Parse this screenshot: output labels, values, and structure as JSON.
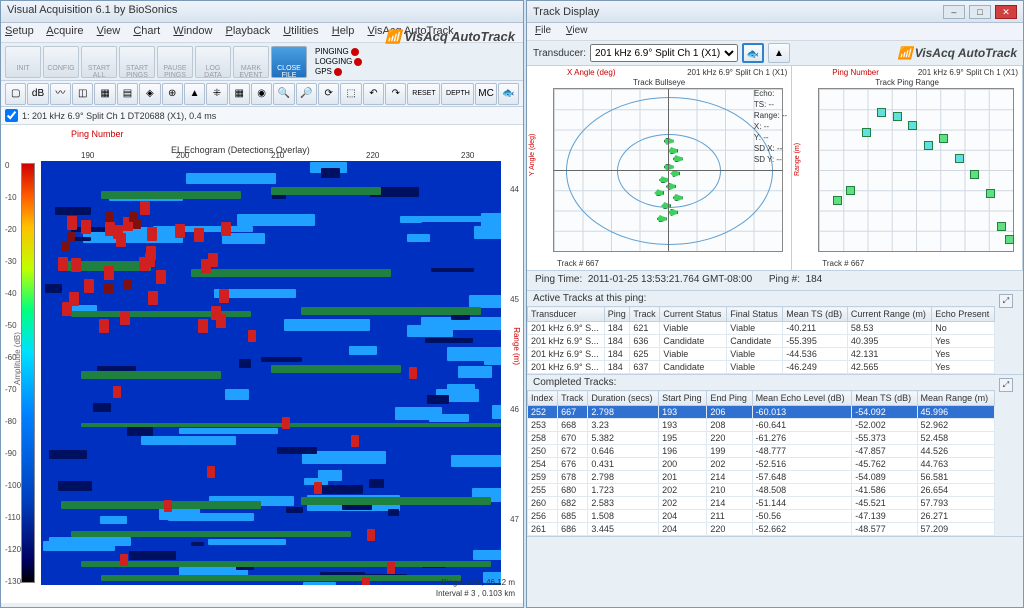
{
  "main": {
    "title": "Visual Acquisition 6.1 by BioSonics",
    "menu": [
      "Setup",
      "Acquire",
      "View",
      "Chart",
      "Window",
      "Playback",
      "Utilities",
      "Help",
      "VisAcq AutoTrack"
    ],
    "brand": "VisAcq AutoTrack",
    "toolbar1": [
      {
        "label": "INIT",
        "cls": "grey"
      },
      {
        "label": "CONFIG",
        "cls": "grey"
      },
      {
        "label": "START ALL",
        "cls": "grey"
      },
      {
        "label": "START PINGS",
        "cls": "grey"
      },
      {
        "label": "PAUSE PINGS",
        "cls": "grey"
      },
      {
        "label": "LOG DATA",
        "cls": "grey"
      },
      {
        "label": "MARK EVENT",
        "cls": "grey"
      },
      {
        "label": "CLOSE FILE",
        "cls": "blue"
      }
    ],
    "status": [
      {
        "name": "PINGING"
      },
      {
        "name": "LOGGING"
      },
      {
        "name": "GPS"
      }
    ],
    "toolbar2_icons": [
      "▢",
      "dB",
      "〰",
      "◫",
      "▦",
      "▤",
      "◈",
      "⊕",
      "▲",
      "⁜",
      "▦",
      "◉",
      "🔍",
      "🔎",
      "⟳",
      "⬚",
      "↶",
      "↷",
      "RESET",
      "DEPTH",
      "MC",
      "🐟"
    ],
    "sub_title": "1: 201 kHz 6.9° Split Ch 1 DT20688 (X1), 0.4 ms"
  },
  "echo": {
    "top_label": "Ping Number",
    "title": "EL Echogram (Detections Overlay)",
    "y_left": "Amplitude (dB)",
    "y_right": "Range (m)",
    "x_ticks": [
      190,
      200,
      210,
      220,
      230
    ],
    "r_ticks": [
      44,
      45,
      46,
      47
    ],
    "cb_ticks": [
      0,
      -10,
      -20,
      -30,
      -40,
      -50,
      -60,
      -70,
      -80,
      -90,
      -100,
      -110,
      -120,
      -130
    ],
    "footer1": "Ping # 204 , 46.12 m",
    "footer2": "Interval # 3 , 0.103 km",
    "bg": "#0030c0",
    "colors": {
      "cyan": "#20a0ff",
      "dark": "#001060",
      "green": "#208040",
      "red": "#d02020",
      "dkred": "#801010"
    }
  },
  "track": {
    "title": "Track Display",
    "menu": [
      "File",
      "View"
    ],
    "transducer_label": "Transducer:",
    "transducer_value": "201 kHz 6.9° Split Ch 1 (X1)",
    "brand": "VisAcq AutoTrack",
    "bullseye": {
      "x_label": "X Angle (deg)",
      "sub": "201 kHz 6.9° Split Ch 1 (X1)",
      "title": "Track Bullseye",
      "y_label": "Y Angle (deg)",
      "ticks": [
        -8,
        -6,
        -4,
        -2,
        0,
        2,
        4,
        6,
        8
      ],
      "footer": "Track # 667",
      "info": [
        "Echo:",
        "TS: --",
        "Range: --",
        "X: --",
        "Y: --",
        "SD X: --",
        "SD Y: --"
      ],
      "fish": [
        [
          50,
          36
        ],
        [
          52,
          41
        ],
        [
          48,
          46
        ],
        [
          51,
          50
        ],
        [
          46,
          54
        ],
        [
          49,
          58
        ],
        [
          44,
          62
        ],
        [
          52,
          65
        ],
        [
          47,
          70
        ],
        [
          50,
          74
        ],
        [
          45,
          78
        ],
        [
          48,
          30
        ]
      ]
    },
    "pingrange": {
      "x_label": "Ping Number",
      "sub": "201 kHz 6.9° Split Ch 1 (X1)",
      "title": "Track Ping Range",
      "y_label": "Range (m)",
      "x_ticks": [
        192,
        194,
        196,
        198,
        200,
        202,
        204,
        206
      ],
      "y_ticks": [
        45.94,
        45.96,
        45.98,
        46,
        46.02,
        46.04,
        46.06,
        46.08,
        46.1,
        46.12
      ],
      "footer": "Track # 667",
      "points": [
        {
          "x": 7,
          "y": 66,
          "c": "green"
        },
        {
          "x": 14,
          "y": 60,
          "c": "green"
        },
        {
          "x": 22,
          "y": 24,
          "c": "cyan"
        },
        {
          "x": 30,
          "y": 12,
          "c": "cyan"
        },
        {
          "x": 38,
          "y": 14,
          "c": "cyan"
        },
        {
          "x": 46,
          "y": 20,
          "c": "cyan"
        },
        {
          "x": 54,
          "y": 32,
          "c": "cyan"
        },
        {
          "x": 62,
          "y": 28,
          "c": "green"
        },
        {
          "x": 70,
          "y": 40,
          "c": "cyan"
        },
        {
          "x": 78,
          "y": 50,
          "c": "green"
        },
        {
          "x": 86,
          "y": 62,
          "c": "green"
        },
        {
          "x": 92,
          "y": 82,
          "c": "green"
        },
        {
          "x": 96,
          "y": 90,
          "c": "green"
        }
      ]
    },
    "ping_time_label": "Ping Time:",
    "ping_time": "2011-01-25 13:53:21.764 GMT-08:00",
    "ping_num_label": "Ping #:",
    "ping_num": "184",
    "active_label": "Active Tracks at this ping:",
    "active_cols": [
      "Transducer",
      "Ping",
      "Track",
      "Current Status",
      "Final Status",
      "Mean TS (dB)",
      "Current Range (m)",
      "Echo Present"
    ],
    "active_rows": [
      [
        "201 kHz 6.9° S...",
        "184",
        "621",
        "Viable",
        "Viable",
        "-40.211",
        "58.53",
        "No"
      ],
      [
        "201 kHz 6.9° S...",
        "184",
        "636",
        "Candidate",
        "Candidate",
        "-55.395",
        "40.395",
        "Yes"
      ],
      [
        "201 kHz 6.9° S...",
        "184",
        "625",
        "Viable",
        "Viable",
        "-44.536",
        "42.131",
        "Yes"
      ],
      [
        "201 kHz 6.9° S...",
        "184",
        "637",
        "Candidate",
        "Viable",
        "-46.249",
        "42.565",
        "Yes"
      ]
    ],
    "completed_label": "Completed Tracks:",
    "completed_cols": [
      "Index",
      "Track",
      "Duration (secs)",
      "Start Ping",
      "End Ping",
      "Mean Echo Level (dB)",
      "Mean TS (dB)",
      "Mean Range (m)"
    ],
    "completed_rows": [
      {
        "sel": true,
        "cells": [
          "252",
          "667",
          "2.798",
          "193",
          "206",
          "-60.013",
          "-54.092",
          "45.996"
        ]
      },
      {
        "cells": [
          "253",
          "668",
          "3.23",
          "193",
          "208",
          "-60.641",
          "-52.002",
          "52.962"
        ]
      },
      {
        "cells": [
          "258",
          "670",
          "5.382",
          "195",
          "220",
          "-61.276",
          "-55.373",
          "52.458"
        ]
      },
      {
        "cells": [
          "250",
          "672",
          "0.646",
          "196",
          "199",
          "-48.777",
          "-47.857",
          "44.526"
        ]
      },
      {
        "cells": [
          "254",
          "676",
          "0.431",
          "200",
          "202",
          "-52.516",
          "-45.762",
          "44.763"
        ]
      },
      {
        "cells": [
          "259",
          "678",
          "2.798",
          "201",
          "214",
          "-57.648",
          "-54.089",
          "56.581"
        ]
      },
      {
        "cells": [
          "255",
          "680",
          "1.723",
          "202",
          "210",
          "-48.508",
          "-41.586",
          "26.654"
        ]
      },
      {
        "cells": [
          "260",
          "682",
          "2.583",
          "202",
          "214",
          "-51.144",
          "-45.521",
          "57.793"
        ]
      },
      {
        "cells": [
          "256",
          "685",
          "1.508",
          "204",
          "211",
          "-50.56",
          "-47.139",
          "26.271"
        ]
      },
      {
        "cells": [
          "261",
          "686",
          "3.445",
          "204",
          "220",
          "-52.662",
          "-48.577",
          "57.209"
        ]
      }
    ]
  }
}
